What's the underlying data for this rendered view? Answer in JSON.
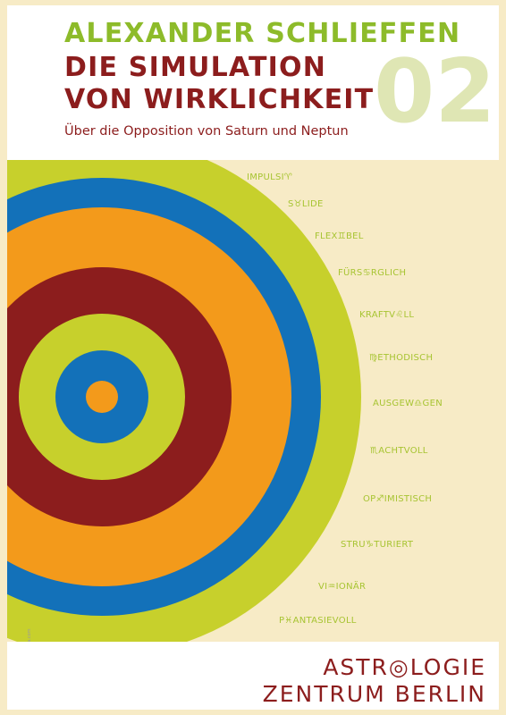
{
  "cover": {
    "author": "ALEXANDER SCHLIEFFEN",
    "title_line_1": "DIE SIMULATION",
    "title_line_2": "VON WIRKLICHKEIT",
    "subtitle": "Über die Opposition von Saturn und Neptun",
    "issue_number": "02"
  },
  "colors": {
    "background": "#f7ebc6",
    "author_green": "#8dbb2a",
    "title_red": "#8c1d1d",
    "issue_number": "#dfe6b4",
    "keyword_green": "#a7c432",
    "ring_lime": "#c7d02c",
    "ring_blue": "#1371b9",
    "ring_orange": "#f39a1b",
    "ring_maroon": "#8c1d1d"
  },
  "rings": [
    "#c7d02c",
    "#1371b9",
    "#f39a1b",
    "#8c1d1d",
    "#c7d02c",
    "#1371b9",
    "#f39a1b"
  ],
  "keywords": [
    {
      "text": "IMPULSI♈",
      "sign": "aries-glyph"
    },
    {
      "text": "S♉LIDE",
      "sign": "taurus-glyph"
    },
    {
      "text": "FLEX♊BEL",
      "sign": "gemini-glyph"
    },
    {
      "text": "FÜRS♋RGLICH",
      "sign": "cancer-glyph"
    },
    {
      "text": "KRAFTV♌LL",
      "sign": "leo-glyph"
    },
    {
      "text": "♍ETHODISCH",
      "sign": "virgo-glyph"
    },
    {
      "text": "AUSGEW♎GEN",
      "sign": "libra-glyph"
    },
    {
      "text": "♏ACHTVOLL",
      "sign": "scorpio-glyph"
    },
    {
      "text": "OP♐IMISTISCH",
      "sign": "sagittarius-glyph"
    },
    {
      "text": "STRU♑TURIERT",
      "sign": "capricorn-glyph"
    },
    {
      "text": "VI♒IONÄR",
      "sign": "aquarius-glyph"
    },
    {
      "text": "P♓ANTASIEVOLL",
      "sign": "pisces-glyph"
    }
  ],
  "photo_credit": "© fotolia.com",
  "logo": {
    "line_1": "ASTR◎LOGIE",
    "line_2": "ZENTRUM BERLIN"
  }
}
